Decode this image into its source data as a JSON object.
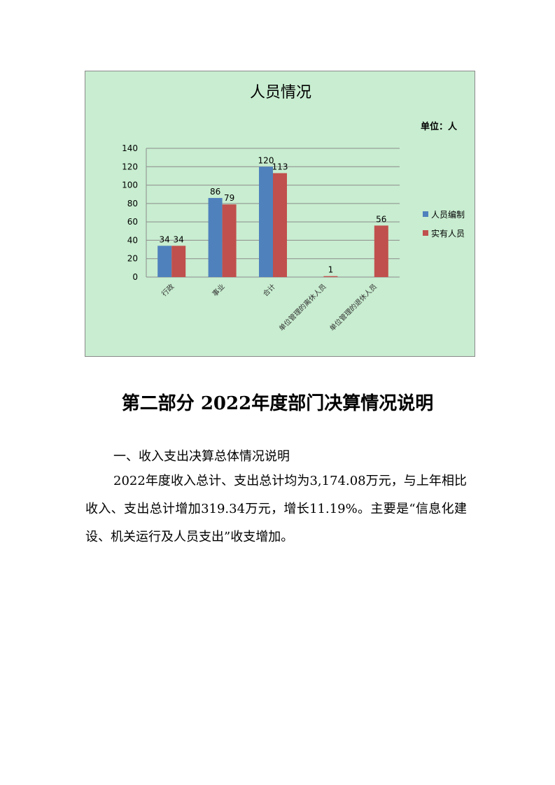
{
  "chart_data": {
    "type": "bar",
    "title": "人员情况",
    "unit_label": "单位：人",
    "categories": [
      "行政",
      "事业",
      "合计",
      "单位管理的离休人员",
      "单位管理的退休人员"
    ],
    "series": [
      {
        "name": "人员编制",
        "color": "#4f81bd",
        "values": [
          34,
          86,
          120,
          null,
          null
        ]
      },
      {
        "name": "实有人员",
        "color": "#c0504d",
        "values": [
          34,
          79,
          113,
          1,
          56
        ]
      }
    ],
    "ylim": [
      0,
      140
    ],
    "yticks": [
      0,
      20,
      40,
      60,
      80,
      100,
      120,
      140
    ],
    "grid": true,
    "legend": "right",
    "background": "#c8edd0"
  },
  "document": {
    "heading": "第二部分  2022年度部门决算情况说明",
    "section_title": "一、收入支出决算总体情况说明",
    "paragraph": "2022年度收入总计、支出总计均为3,174.08万元，与上年相比收入、支出总计增加319.34万元，增长11.19%。主要是“信息化建设、机关运行及人员支出”收支增加。"
  }
}
